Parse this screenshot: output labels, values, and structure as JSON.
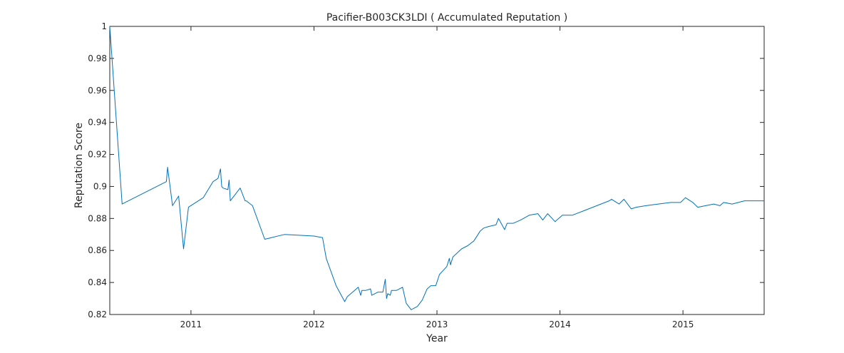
{
  "chart_data": {
    "type": "line",
    "title": "Pacifier-B003CK3LDI ( Accumulated Reputation )",
    "xlabel": "Year",
    "ylabel": "Reputation Score",
    "x_range": [
      2010.34,
      2015.66
    ],
    "ylim": [
      0.82,
      1.0
    ],
    "x_ticks": [
      2011,
      2012,
      2013,
      2014,
      2015
    ],
    "x_tick_labels": [
      "2011",
      "2012",
      "2013",
      "2014",
      "2015"
    ],
    "y_ticks": [
      0.82,
      0.84,
      0.86,
      0.88,
      0.9,
      0.92,
      0.94,
      0.96,
      0.98,
      1.0
    ],
    "y_tick_labels": [
      "0.82",
      "0.84",
      "0.86",
      "0.88",
      "0.9",
      "0.92",
      "0.94",
      "0.96",
      "0.98",
      "1"
    ],
    "grid": false,
    "series": [
      {
        "color": "#0072BD",
        "x": [
          2010.34,
          2010.44,
          2010.8,
          2010.81,
          2010.85,
          2010.9,
          2010.94,
          2010.98,
          2011.02,
          2011.1,
          2011.18,
          2011.22,
          2011.24,
          2011.25,
          2011.26,
          2011.3,
          2011.31,
          2011.32,
          2011.36,
          2011.4,
          2011.44,
          2011.45,
          2011.5,
          2011.6,
          2011.76,
          2012.0,
          2012.07,
          2012.1,
          2012.18,
          2012.25,
          2012.27,
          2012.3,
          2012.36,
          2012.38,
          2012.39,
          2012.42,
          2012.46,
          2012.47,
          2012.52,
          2012.56,
          2012.58,
          2012.59,
          2012.6,
          2012.62,
          2012.63,
          2012.67,
          2012.72,
          2012.75,
          2012.79,
          2012.84,
          2012.88,
          2012.92,
          2012.95,
          2012.99,
          2013.02,
          2013.08,
          2013.1,
          2013.11,
          2013.13,
          2013.2,
          2013.25,
          2013.3,
          2013.35,
          2013.38,
          2013.42,
          2013.48,
          2013.5,
          2013.55,
          2013.57,
          2013.62,
          2013.68,
          2013.75,
          2013.82,
          2013.86,
          2013.9,
          2013.96,
          2014.02,
          2014.1,
          2014.2,
          2014.3,
          2014.4,
          2014.42,
          2014.48,
          2014.52,
          2014.58,
          2014.62,
          2014.7,
          2014.8,
          2014.9,
          2014.98,
          2015.02,
          2015.08,
          2015.12,
          2015.25,
          2015.3,
          2015.33,
          2015.4,
          2015.5,
          2015.66
        ],
        "y": [
          1.0,
          0.889,
          0.903,
          0.912,
          0.888,
          0.894,
          0.861,
          0.887,
          0.889,
          0.893,
          0.903,
          0.905,
          0.911,
          0.9,
          0.899,
          0.898,
          0.904,
          0.891,
          0.895,
          0.899,
          0.891,
          0.891,
          0.888,
          0.867,
          0.87,
          0.869,
          0.868,
          0.855,
          0.838,
          0.828,
          0.831,
          0.833,
          0.837,
          0.832,
          0.835,
          0.835,
          0.836,
          0.832,
          0.834,
          0.834,
          0.842,
          0.83,
          0.833,
          0.832,
          0.835,
          0.835,
          0.837,
          0.827,
          0.823,
          0.825,
          0.829,
          0.836,
          0.838,
          0.838,
          0.845,
          0.85,
          0.855,
          0.851,
          0.856,
          0.861,
          0.863,
          0.866,
          0.872,
          0.874,
          0.875,
          0.876,
          0.88,
          0.873,
          0.877,
          0.877,
          0.879,
          0.882,
          0.883,
          0.879,
          0.883,
          0.878,
          0.882,
          0.882,
          0.885,
          0.888,
          0.891,
          0.892,
          0.889,
          0.892,
          0.886,
          0.887,
          0.888,
          0.889,
          0.89,
          0.89,
          0.893,
          0.89,
          0.887,
          0.889,
          0.888,
          0.89,
          0.889,
          0.891,
          0.891
        ]
      }
    ]
  }
}
